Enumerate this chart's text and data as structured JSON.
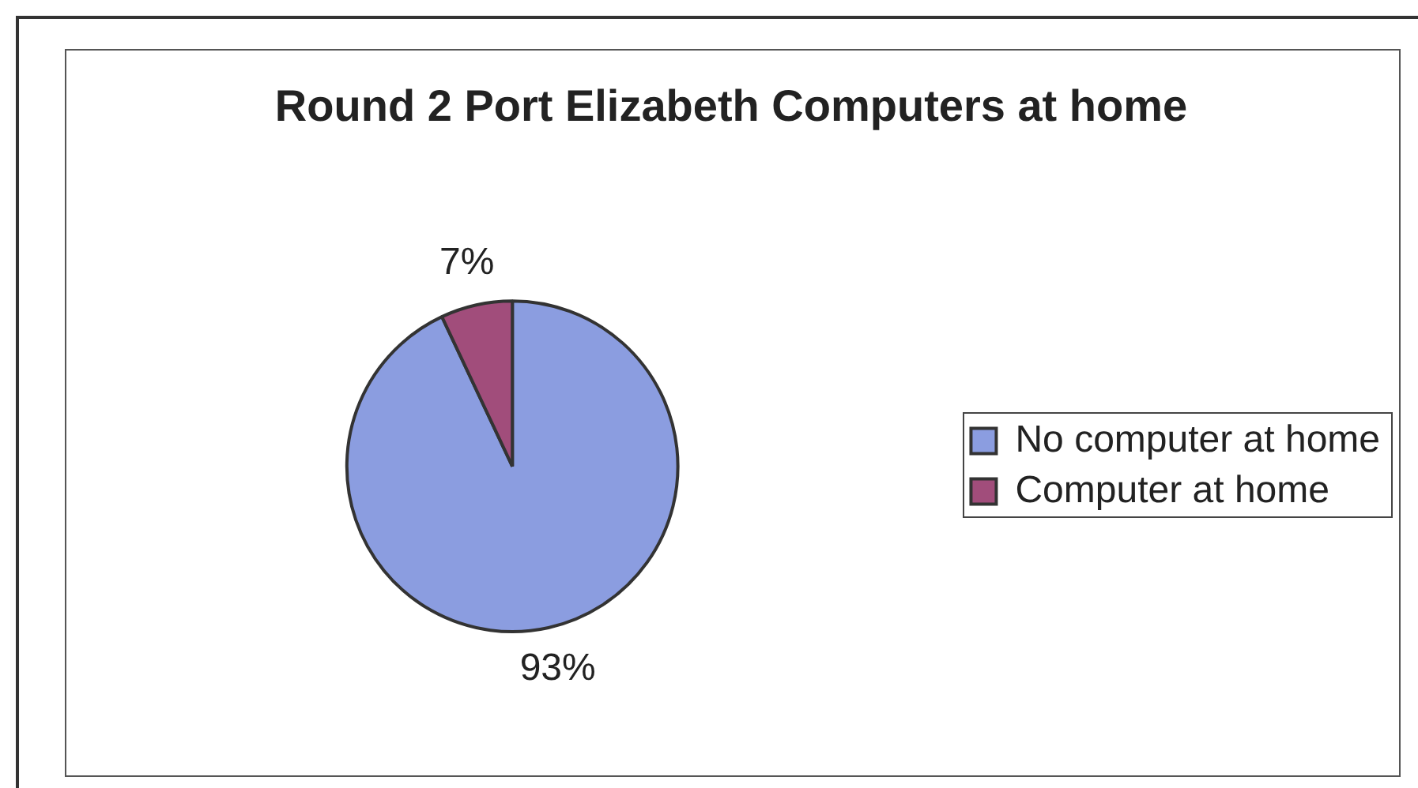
{
  "chart_data": {
    "type": "pie",
    "title": "Round 2 Port Elizabeth Computers at home",
    "categories": [
      "No computer at home",
      "Computer at home"
    ],
    "values": [
      93,
      7
    ],
    "colors": [
      "#8b9de0",
      "#a14d7b"
    ],
    "value_labels": [
      "93%",
      "7%"
    ],
    "legend": "right"
  }
}
